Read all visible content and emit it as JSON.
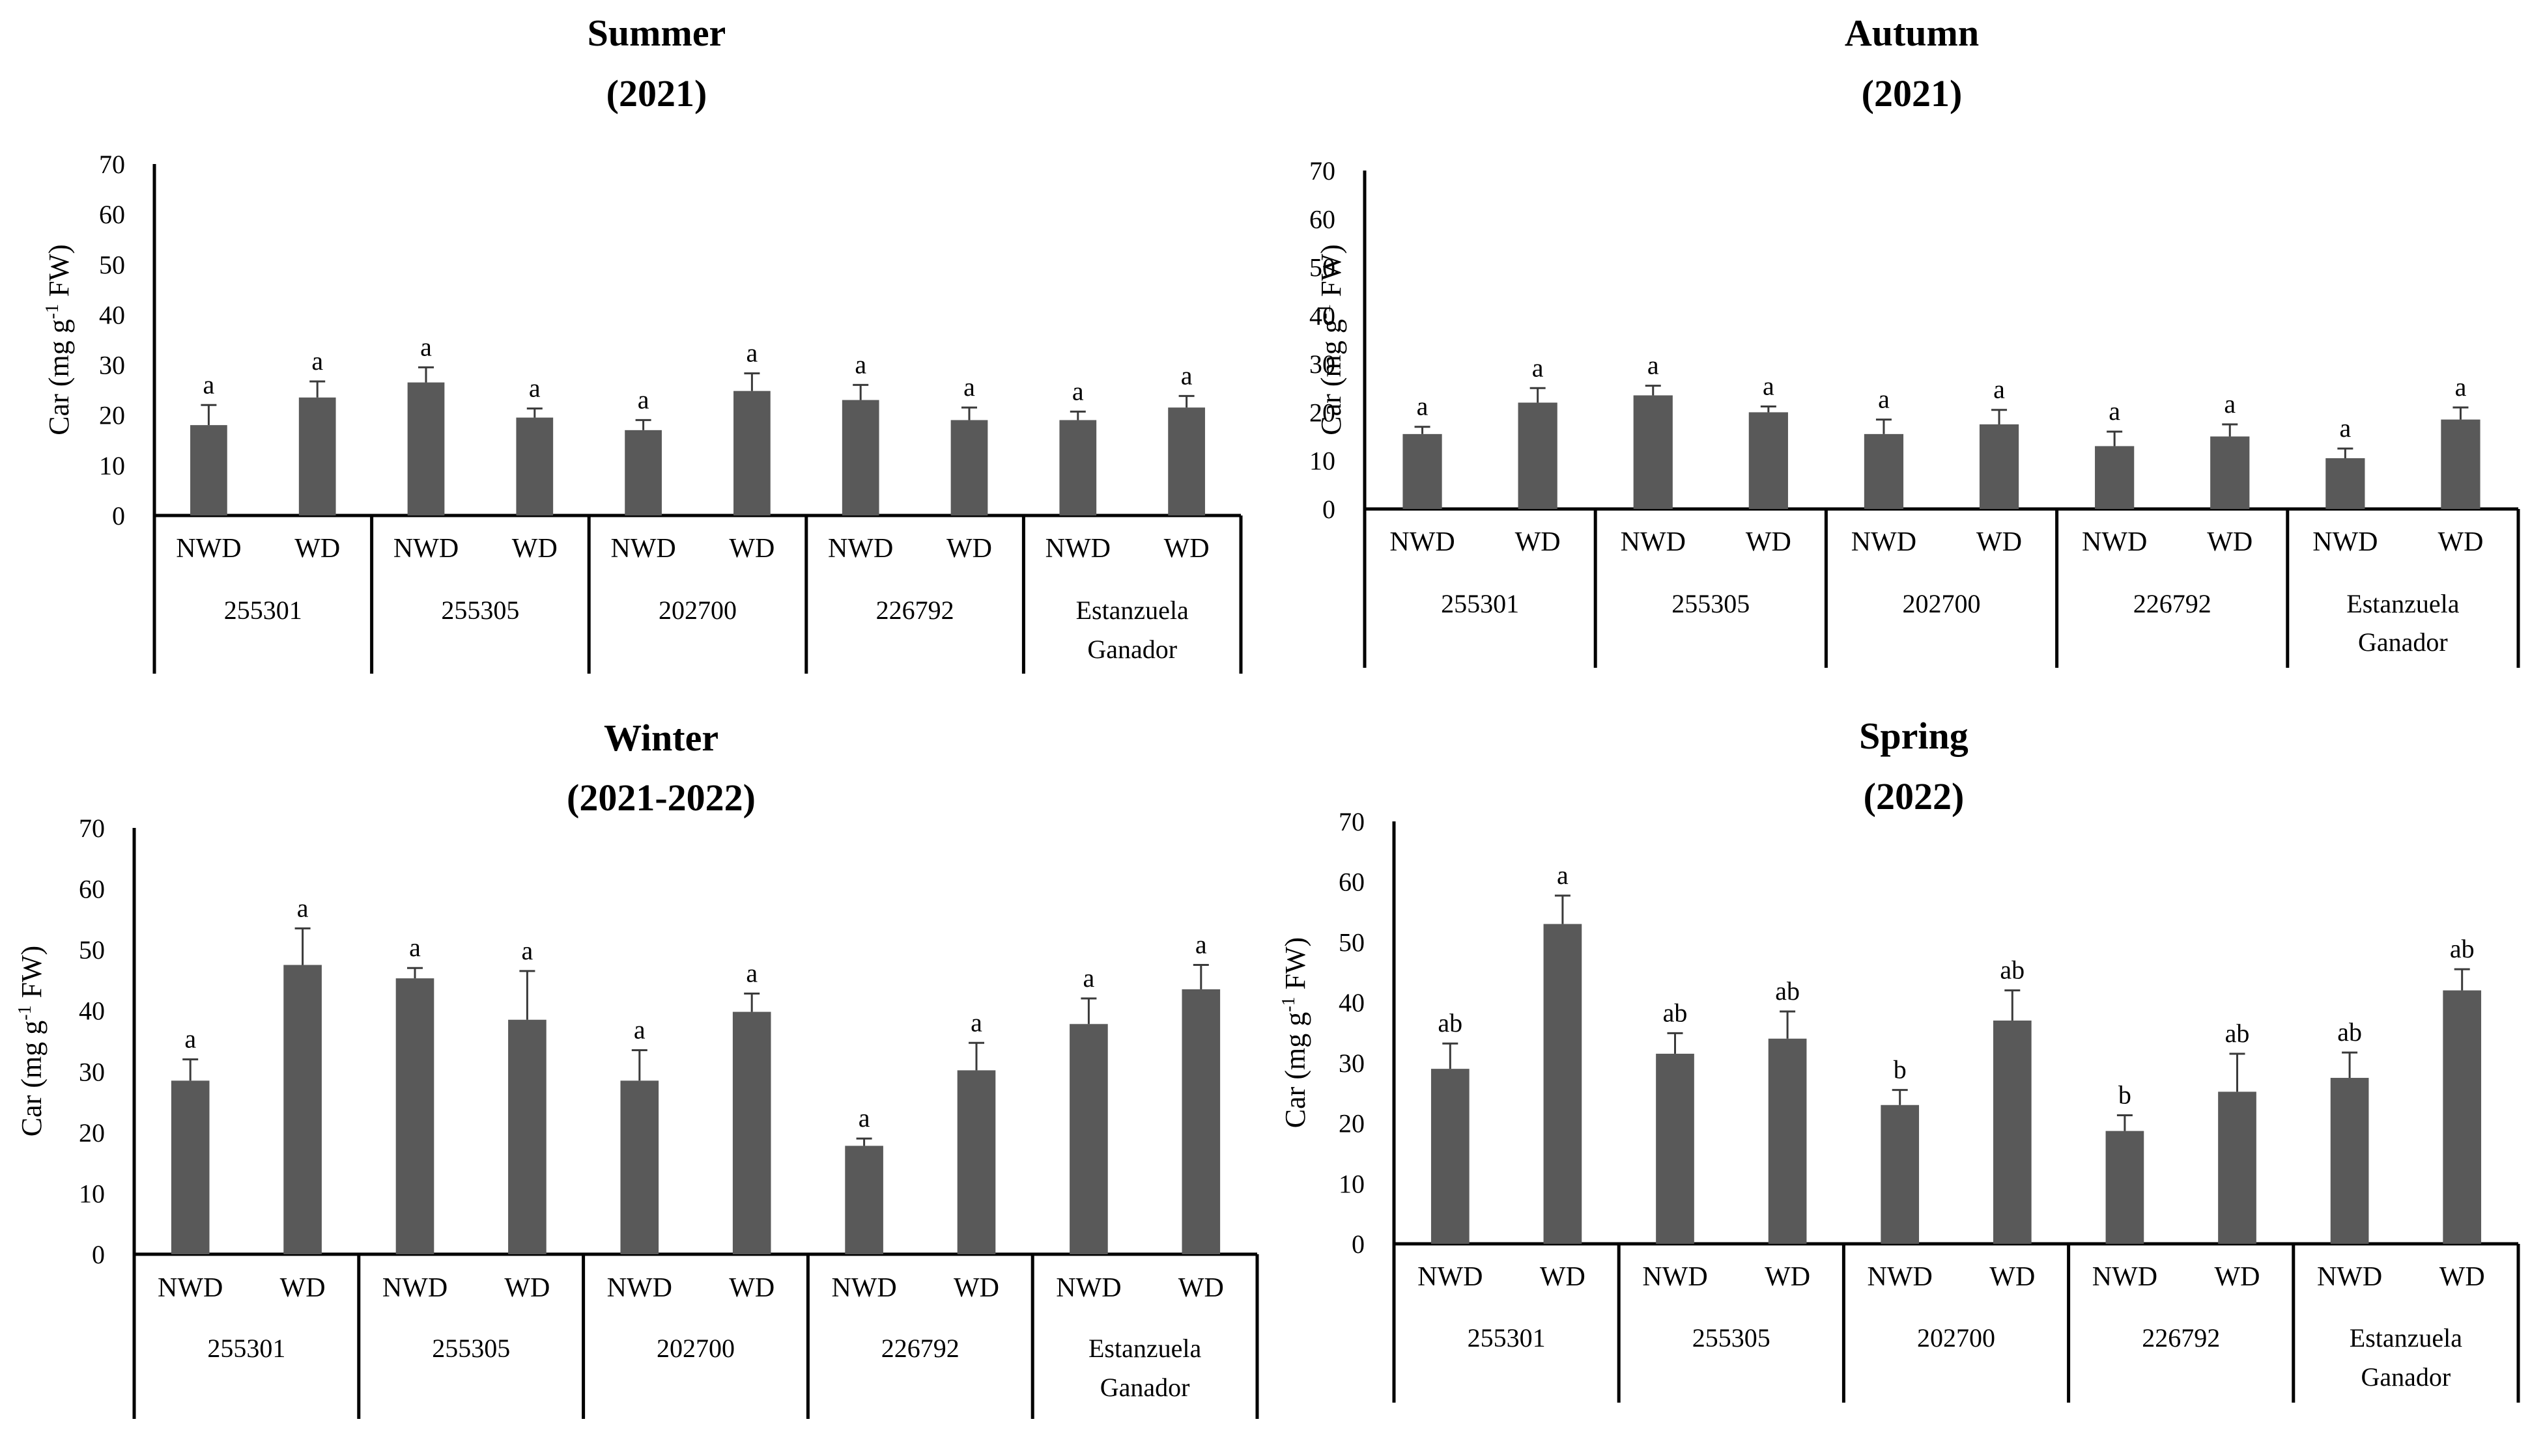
{
  "colors": {
    "bar": "#595959",
    "axis": "#000000",
    "text": "#000000"
  },
  "chart_data": [
    {
      "type": "bar",
      "title": "Summer",
      "subtitle": "(2021)",
      "ylabel_main": "Car (mg g",
      "ylabel_sup": "-1",
      "ylabel_end": " FW)",
      "ylim": [
        0,
        70
      ],
      "yticks": [
        "0",
        "10",
        "20",
        "30",
        "40",
        "50",
        "60",
        "70"
      ],
      "groups": [
        "255301",
        "255305",
        "202700",
        "226792",
        [
          "Estanzuela",
          "Ganador"
        ]
      ],
      "treatments": [
        "NWD",
        "WD"
      ],
      "values": [
        18,
        23.5,
        26.5,
        19.5,
        17,
        24.8,
        23,
        19,
        19,
        21.5
      ],
      "errors": [
        4,
        3.2,
        3,
        1.8,
        2,
        3.5,
        3,
        2.5,
        1.7,
        2.3
      ],
      "labels": [
        "a",
        "a",
        "a",
        "a",
        "a",
        "a",
        "a",
        "a",
        "a",
        "a"
      ]
    },
    {
      "type": "bar",
      "title": "Autumn",
      "subtitle": "(2021)",
      "ylabel_main": "Car (mg g",
      "ylabel_sup": "-1",
      "ylabel_end": " FW)",
      "ylim": [
        0,
        70
      ],
      "yticks": [
        "0",
        "10",
        "20",
        "30",
        "40",
        "50",
        "60",
        "70"
      ],
      "groups": [
        "255301",
        "255305",
        "202700",
        "226792",
        [
          "Estanzuela",
          "Ganador"
        ]
      ],
      "treatments": [
        "NWD",
        "WD"
      ],
      "values": [
        15.5,
        22,
        23.5,
        20,
        15.5,
        17.5,
        13,
        15,
        10.5,
        18.5
      ],
      "errors": [
        1.5,
        3,
        2,
        1.2,
        3,
        3,
        3,
        2.5,
        2,
        2.5
      ],
      "labels": [
        "a",
        "a",
        "a",
        "a",
        "a",
        "a",
        "a",
        "a",
        "a",
        "a"
      ]
    },
    {
      "type": "bar",
      "title": "Winter",
      "subtitle": "(2021-2022)",
      "ylabel_main": "Car (mg g",
      "ylabel_sup": "-1",
      "ylabel_end": " FW)",
      "ylim": [
        0,
        70
      ],
      "yticks": [
        "0",
        "10",
        "20",
        "30",
        "40",
        "50",
        "60",
        "70"
      ],
      "groups": [
        "255301",
        "255305",
        "202700",
        "226792",
        [
          "Estanzuela",
          "Ganador"
        ]
      ],
      "treatments": [
        "NWD",
        "WD"
      ],
      "values": [
        28.5,
        47.5,
        45.3,
        38.5,
        28.5,
        39.8,
        17.8,
        30.2,
        37.8,
        43.5
      ],
      "errors": [
        3.5,
        6,
        1.7,
        8,
        5,
        3,
        1.2,
        4.5,
        4.2,
        4
      ],
      "labels": [
        "a",
        "a",
        "a",
        "a",
        "a",
        "a",
        "a",
        "a",
        "a",
        "a"
      ]
    },
    {
      "type": "bar",
      "title": "Spring",
      "subtitle": "(2022)",
      "ylabel_main": "Car (mg g",
      "ylabel_sup": "-1",
      "ylabel_end": " FW)",
      "ylim": [
        0,
        70
      ],
      "yticks": [
        "0",
        "10",
        "20",
        "30",
        "40",
        "50",
        "60",
        "70"
      ],
      "groups": [
        "255301",
        "255305",
        "202700",
        "226792",
        [
          "Estanzuela",
          "Ganador"
        ]
      ],
      "treatments": [
        "NWD",
        "WD"
      ],
      "values": [
        29,
        53,
        31.5,
        34,
        23,
        37,
        18.7,
        25.2,
        27.5,
        42
      ],
      "errors": [
        4.2,
        4.7,
        3.4,
        4.5,
        2.5,
        5,
        2.6,
        6.3,
        4.2,
        3.5
      ],
      "labels": [
        "ab",
        "a",
        "ab",
        "ab",
        "b",
        "ab",
        "b",
        "ab",
        "ab",
        "ab"
      ]
    }
  ]
}
